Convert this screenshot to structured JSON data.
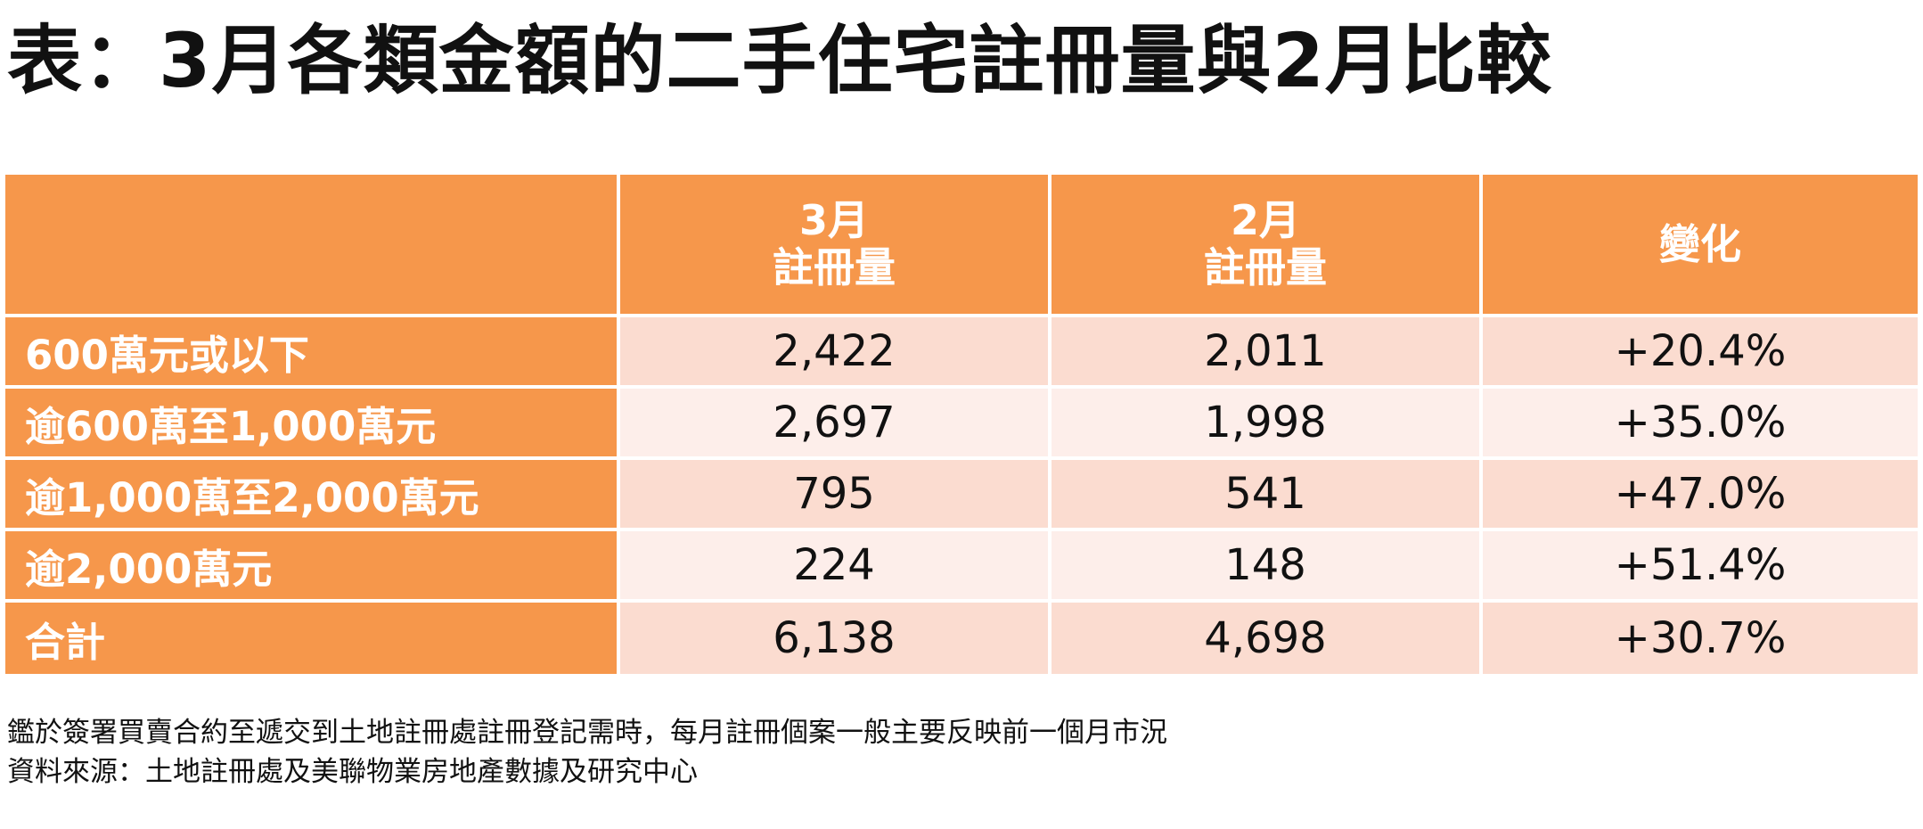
{
  "title": "表：3月各類金額的二手住宅註冊量與2月比較",
  "colors": {
    "header_bg": "#f6974b",
    "header_text": "#ffffff",
    "row_odd_bg": "#fbdcd0",
    "row_even_bg": "#fdeeea"
  },
  "table": {
    "headers": [
      {
        "line1": "",
        "line2": ""
      },
      {
        "line1": "3月",
        "line2": "註冊量"
      },
      {
        "line1": "2月",
        "line2": "註冊量"
      },
      {
        "line1": "變化",
        "line2": ""
      }
    ],
    "rows": [
      {
        "label": "600萬元或以下",
        "march": "2,422",
        "feb": "2,011",
        "change": "+20.4%"
      },
      {
        "label": "逾600萬至1,000萬元",
        "march": "2,697",
        "feb": "1,998",
        "change": "+35.0%"
      },
      {
        "label": "逾1,000萬至2,000萬元",
        "march": "795",
        "feb": "541",
        "change": "+47.0%"
      },
      {
        "label": "逾2,000萬元",
        "march": "224",
        "feb": "148",
        "change": "+51.4%"
      },
      {
        "label": "合計",
        "march": "6,138",
        "feb": "4,698",
        "change": "+30.7%"
      }
    ]
  },
  "notes": [
    "鑑於簽署買賣合約至遞交到土地註冊處註冊登記需時，每月註冊個案一般主要反映前一個月市況",
    "資料來源：土地註冊處及美聯物業房地產數據及研究中心"
  ],
  "chart_data": {
    "type": "table",
    "title": "表：3月各類金額的二手住宅註冊量與2月比較",
    "columns": [
      "",
      "3月註冊量",
      "2月註冊量",
      "變化"
    ],
    "categories": [
      "600萬元或以下",
      "逾600萬至1,000萬元",
      "逾1,000萬至2,000萬元",
      "逾2,000萬元",
      "合計"
    ],
    "series": [
      {
        "name": "3月註冊量",
        "values": [
          2422,
          2697,
          795,
          224,
          6138
        ]
      },
      {
        "name": "2月註冊量",
        "values": [
          2011,
          1998,
          541,
          148,
          4698
        ]
      },
      {
        "name": "變化",
        "values": [
          20.4,
          35.0,
          47.0,
          51.4,
          30.7
        ]
      }
    ]
  }
}
